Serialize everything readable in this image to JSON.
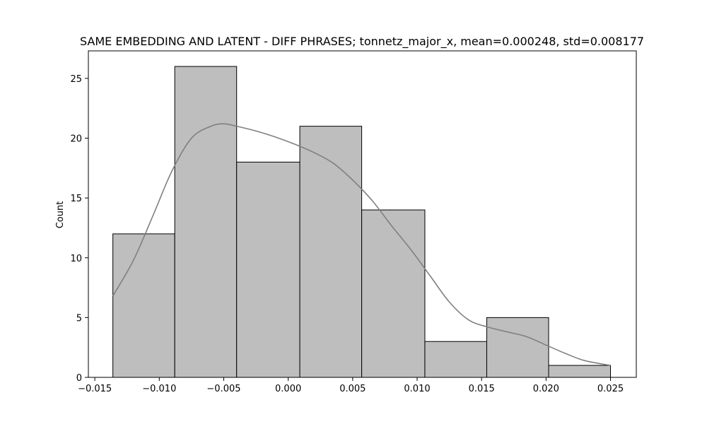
{
  "chart_data": {
    "type": "bar",
    "title": "SAME EMBEDDING AND LATENT - DIFF PHRASES; tonnetz_major_x, mean=0.000248, std=0.008177",
    "xlabel": "",
    "ylabel": "Count",
    "xlim": [
      -0.0155,
      0.027
    ],
    "ylim": [
      0,
      27.3
    ],
    "x_ticks": [
      {
        "value": -0.015,
        "label": "−0.015"
      },
      {
        "value": -0.01,
        "label": "−0.010"
      },
      {
        "value": -0.005,
        "label": "−0.005"
      },
      {
        "value": 0.0,
        "label": "0.000"
      },
      {
        "value": 0.005,
        "label": "0.005"
      },
      {
        "value": 0.01,
        "label": "0.010"
      },
      {
        "value": 0.015,
        "label": "0.015"
      },
      {
        "value": 0.02,
        "label": "0.020"
      },
      {
        "value": 0.025,
        "label": "0.025"
      }
    ],
    "y_ticks": [
      {
        "value": 0,
        "label": "0"
      },
      {
        "value": 5,
        "label": "5"
      },
      {
        "value": 10,
        "label": "10"
      },
      {
        "value": 15,
        "label": "15"
      },
      {
        "value": 20,
        "label": "20"
      },
      {
        "value": 25,
        "label": "25"
      }
    ],
    "bins": [
      {
        "start": -0.0136,
        "end": -0.0088,
        "count": 12
      },
      {
        "start": -0.0088,
        "end": -0.004,
        "count": 26
      },
      {
        "start": -0.004,
        "end": 0.0009,
        "count": 18
      },
      {
        "start": 0.0009,
        "end": 0.0057,
        "count": 21
      },
      {
        "start": 0.0057,
        "end": 0.0106,
        "count": 14
      },
      {
        "start": 0.0106,
        "end": 0.0154,
        "count": 3
      },
      {
        "start": 0.0154,
        "end": 0.0202,
        "count": 5
      },
      {
        "start": 0.0202,
        "end": 0.025,
        "count": 1
      }
    ],
    "kde": {
      "x": [
        -0.0136,
        -0.012,
        -0.0105,
        -0.009,
        -0.0075,
        -0.006,
        -0.005,
        -0.004,
        -0.0025,
        -0.001,
        0.0005,
        0.002,
        0.0035,
        0.005,
        0.0065,
        0.008,
        0.0095,
        0.011,
        0.0125,
        0.014,
        0.0155,
        0.017,
        0.0185,
        0.02,
        0.0215,
        0.023,
        0.025
      ],
      "y": [
        6.8,
        9.8,
        13.5,
        17.3,
        20.0,
        21.0,
        21.2,
        21.0,
        20.6,
        20.1,
        19.5,
        18.8,
        17.9,
        16.5,
        14.8,
        12.7,
        10.7,
        8.5,
        6.3,
        4.8,
        4.2,
        3.8,
        3.4,
        2.7,
        2.0,
        1.4,
        1.0
      ]
    },
    "colors": {
      "bar_fill": "#bebebe",
      "bar_edge": "#000000",
      "kde_line": "#808080",
      "axes": "#000000"
    },
    "grid": false,
    "legend": "none"
  }
}
